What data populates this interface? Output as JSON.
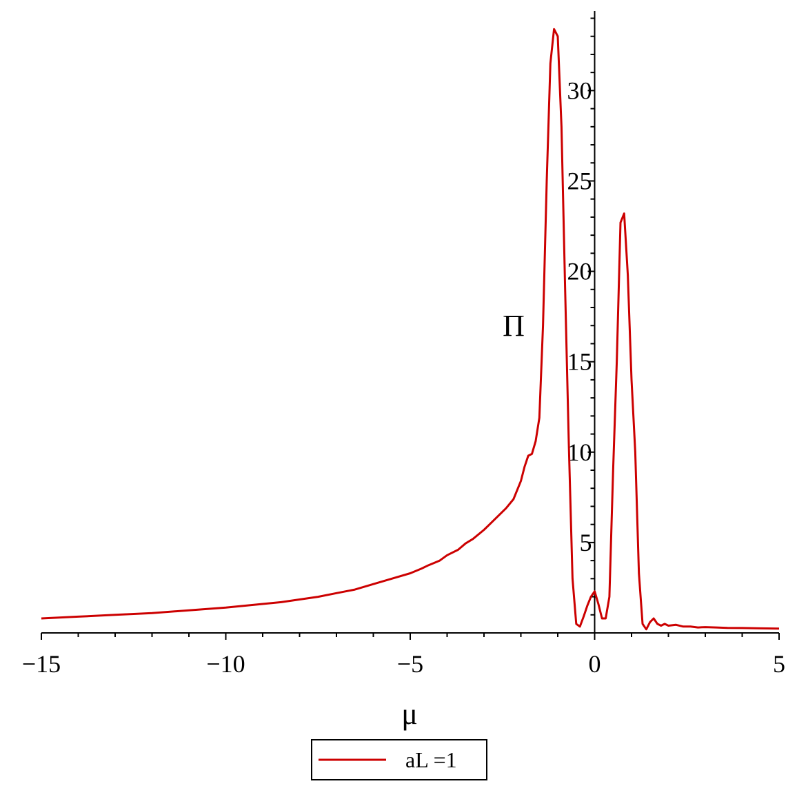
{
  "chart_data": {
    "type": "line",
    "title": "",
    "xlabel": "μ",
    "ylabel": "Π",
    "xlim": [
      -15,
      5
    ],
    "ylim": [
      0,
      34.4
    ],
    "x_ticks": [
      -15,
      -10,
      -5,
      0,
      5
    ],
    "x_tick_labels": [
      "−15",
      "−10",
      "−5",
      "0",
      "5"
    ],
    "y_ticks": [
      5,
      10,
      15,
      20,
      25,
      30
    ],
    "y_tick_labels": [
      "5",
      "10",
      "15",
      "20",
      "25",
      "30"
    ],
    "grid": false,
    "legend_position": "bottom-center",
    "series": [
      {
        "name": "aL =1",
        "color": "#cc0000",
        "x": [
          -15,
          -14,
          -13,
          -12,
          -11,
          -10,
          -9,
          -8.5,
          -8,
          -7.5,
          -7,
          -6.5,
          -6,
          -5.5,
          -5,
          -4.7,
          -4.5,
          -4.2,
          -4,
          -3.7,
          -3.5,
          -3.3,
          -3,
          -2.8,
          -2.6,
          -2.4,
          -2.2,
          -2.1,
          -2.0,
          -1.9,
          -1.8,
          -1.7,
          -1.6,
          -1.5,
          -1.4,
          -1.3,
          -1.2,
          -1.1,
          -1.0,
          -0.9,
          -0.8,
          -0.7,
          -0.6,
          -0.5,
          -0.4,
          -0.3,
          -0.2,
          -0.1,
          0.0,
          0.1,
          0.2,
          0.3,
          0.4,
          0.5,
          0.6,
          0.7,
          0.8,
          0.9,
          1.0,
          1.1,
          1.2,
          1.3,
          1.4,
          1.5,
          1.6,
          1.7,
          1.8,
          1.9,
          2.0,
          2.2,
          2.4,
          2.6,
          2.8,
          3.0,
          3.3,
          3.6,
          4.0,
          4.5,
          5.0
        ],
        "y": [
          0.8,
          0.9,
          1.0,
          1.1,
          1.25,
          1.4,
          1.6,
          1.7,
          1.85,
          2.0,
          2.2,
          2.4,
          2.7,
          3.0,
          3.3,
          3.55,
          3.75,
          4.0,
          4.3,
          4.6,
          4.95,
          5.2,
          5.7,
          6.1,
          6.5,
          6.9,
          7.4,
          7.9,
          8.4,
          9.2,
          9.8,
          9.9,
          10.6,
          11.9,
          17.0,
          25.0,
          31.5,
          33.4,
          33.0,
          28.0,
          19.0,
          10.5,
          3.0,
          0.5,
          0.35,
          0.9,
          1.5,
          2.0,
          2.3,
          1.6,
          0.8,
          0.8,
          2.0,
          9.0,
          15.0,
          22.7,
          23.2,
          19.8,
          14.0,
          10.0,
          3.3,
          0.5,
          0.2,
          0.6,
          0.8,
          0.5,
          0.4,
          0.5,
          0.4,
          0.45,
          0.35,
          0.35,
          0.3,
          0.32,
          0.3,
          0.28,
          0.27,
          0.25,
          0.24
        ]
      }
    ]
  }
}
